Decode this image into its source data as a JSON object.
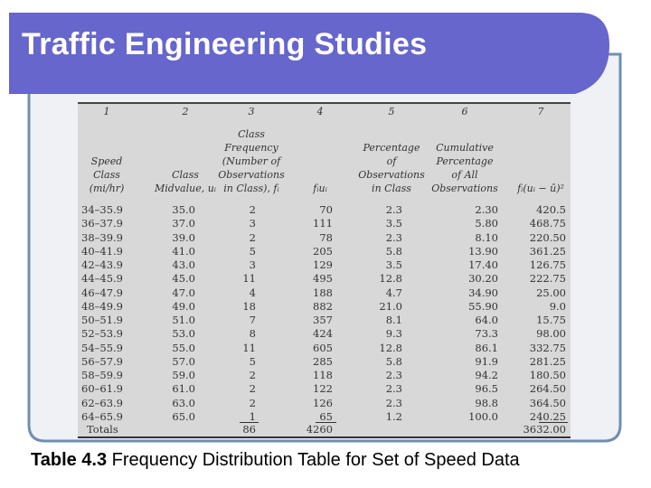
{
  "slide": {
    "title": "Traffic Engineering Studies",
    "colors": {
      "banner": "#6666cc",
      "border": "#6f8fb1",
      "frame_fill": "#eff1f5"
    }
  },
  "table": {
    "column_numbers": [
      "1",
      "2",
      "3",
      "4",
      "5",
      "6",
      "7"
    ],
    "headers": [
      "Speed\nClass\n(mi/hr)",
      "Class\nMidvalue, uᵢ",
      "Class\nFrequency\n(Number of\nObservations\nin Class), fᵢ",
      "fᵢuᵢ",
      "Percentage\nof\nObservations\nin Class",
      "Cumulative\nPercentage\nof All\nObservations",
      "fᵢ(uᵢ − ū)²"
    ],
    "rows": [
      [
        "34–35.9",
        "35.0",
        "2",
        "70",
        "2.3",
        "2.30",
        "420.5"
      ],
      [
        "36–37.9",
        "37.0",
        "3",
        "111",
        "3.5",
        "5.80",
        "468.75"
      ],
      [
        "38–39.9",
        "39.0",
        "2",
        "78",
        "2.3",
        "8.10",
        "220.50"
      ],
      [
        "40–41.9",
        "41.0",
        "5",
        "205",
        "5.8",
        "13.90",
        "361.25"
      ],
      [
        "42–43.9",
        "43.0",
        "3",
        "129",
        "3.5",
        "17.40",
        "126.75"
      ],
      [
        "44–45.9",
        "45.0",
        "11",
        "495",
        "12.8",
        "30.20",
        "222.75"
      ],
      [
        "46–47.9",
        "47.0",
        "4",
        "188",
        "4.7",
        "34.90",
        "25.00"
      ],
      [
        "48–49.9",
        "49.0",
        "18",
        "882",
        "21.0",
        "55.90",
        "9.0"
      ],
      [
        "50–51.9",
        "51.0",
        "7",
        "357",
        "8.1",
        "64.0",
        "15.75"
      ],
      [
        "52–53.9",
        "53.0",
        "8",
        "424",
        "9.3",
        "73.3",
        "98.00"
      ],
      [
        "54–55.9",
        "55.0",
        "11",
        "605",
        "12.8",
        "86.1",
        "332.75"
      ],
      [
        "56–57.9",
        "57.0",
        "5",
        "285",
        "5.8",
        "91.9",
        "281.25"
      ],
      [
        "58–59.9",
        "59.0",
        "2",
        "118",
        "2.3",
        "94.2",
        "180.50"
      ],
      [
        "60–61.9",
        "61.0",
        "2",
        "122",
        "2.3",
        "96.5",
        "264.50"
      ],
      [
        "62–63.9",
        "63.0",
        "2",
        "126",
        "2.3",
        "98.8",
        "364.50"
      ],
      [
        "64–65.9",
        "65.0",
        "1",
        "65",
        "1.2",
        "100.0",
        "240.25"
      ]
    ],
    "totals": {
      "label": "Totals",
      "frequency": "86",
      "fu": "4260",
      "squares": "3632.00"
    }
  },
  "caption": {
    "label": "Table 4.3",
    "text": " Frequency Distribution Table for Set of Speed Data"
  }
}
